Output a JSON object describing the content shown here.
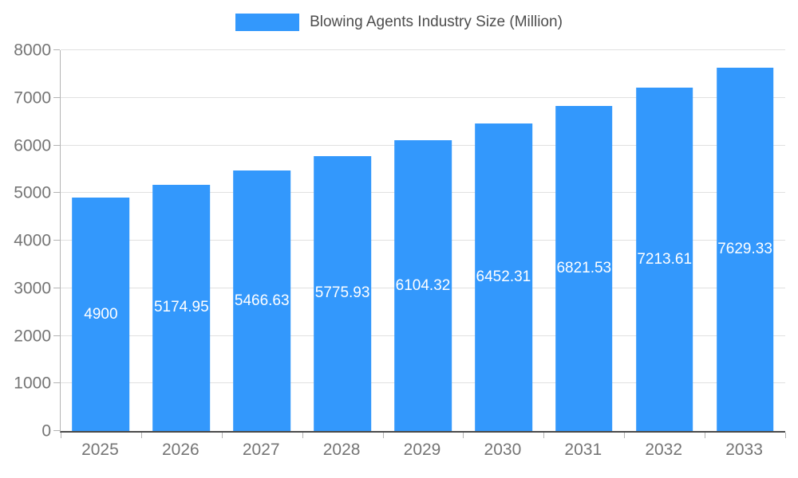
{
  "chart_data": {
    "type": "bar",
    "title": "Blowing Agents Industry Size (Million)",
    "legend_label": "Blowing Agents Industry Size (Million)",
    "categories": [
      "2025",
      "2026",
      "2027",
      "2028",
      "2029",
      "2030",
      "2031",
      "2032",
      "2033"
    ],
    "values": [
      4900,
      5174.95,
      5466.63,
      5775.93,
      6104.32,
      6452.31,
      6821.53,
      7213.61,
      7629.33
    ],
    "labels": [
      "4900",
      "5174.95",
      "5466.63",
      "5775.93",
      "6104.32",
      "6452.31",
      "6821.53",
      "7213.61",
      "7629.33"
    ],
    "xlabel": "",
    "ylabel": "",
    "ylim": [
      0,
      8000
    ],
    "yticks": [
      0,
      1000,
      2000,
      3000,
      4000,
      5000,
      6000,
      7000,
      8000
    ],
    "grid": true,
    "legend_position": "top",
    "colors": {
      "bar": "#3398fc",
      "bar_label": "#ffffff",
      "axis_text": "#757575",
      "grid_line": "#e0e0e0",
      "axis_line": "#4a4a4a",
      "tick_line": "#b3b3b3",
      "legend_text": "#4d4d4d"
    }
  }
}
